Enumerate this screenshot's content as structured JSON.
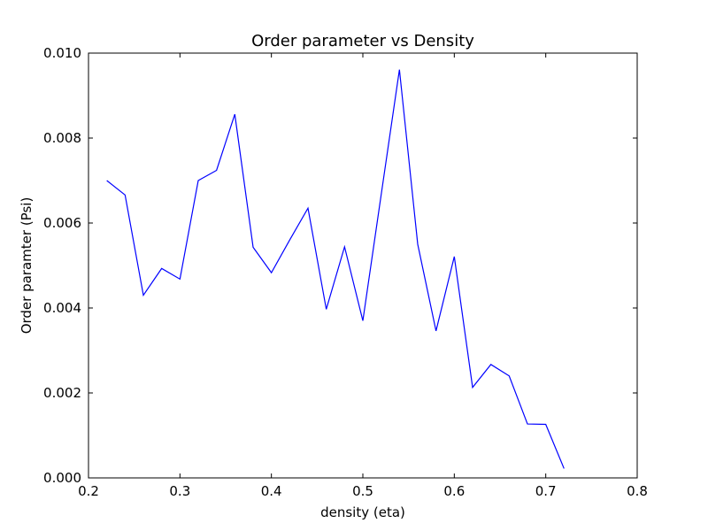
{
  "chart_data": {
    "type": "line",
    "title": "Order parameter vs Density",
    "xlabel": "density (eta)",
    "ylabel": "Order paramter (Psi)",
    "xlim": [
      0.2,
      0.8
    ],
    "ylim": [
      0.0,
      0.01
    ],
    "xticks": [
      "0.2",
      "0.3",
      "0.4",
      "0.5",
      "0.6",
      "0.7",
      "0.8"
    ],
    "yticks": [
      "0.000",
      "0.002",
      "0.004",
      "0.006",
      "0.008",
      "0.010"
    ],
    "grid": false,
    "series": [
      {
        "color": "#0000ff",
        "x": [
          0.22,
          0.24,
          0.26,
          0.28,
          0.3,
          0.32,
          0.34,
          0.36,
          0.38,
          0.4,
          0.42,
          0.44,
          0.46,
          0.48,
          0.5,
          0.52,
          0.54,
          0.56,
          0.58,
          0.6,
          0.62,
          0.64,
          0.66,
          0.68,
          0.7,
          0.72
        ],
        "y": [
          0.007,
          0.00666,
          0.0043,
          0.00493,
          0.00468,
          0.007,
          0.00724,
          0.00856,
          0.00543,
          0.00483,
          0.0056,
          0.00635,
          0.00397,
          0.00544,
          0.0037,
          0.00666,
          0.00961,
          0.0055,
          0.00346,
          0.00521,
          0.00213,
          0.00267,
          0.0024,
          0.00127,
          0.00126,
          0.00022
        ]
      }
    ]
  }
}
